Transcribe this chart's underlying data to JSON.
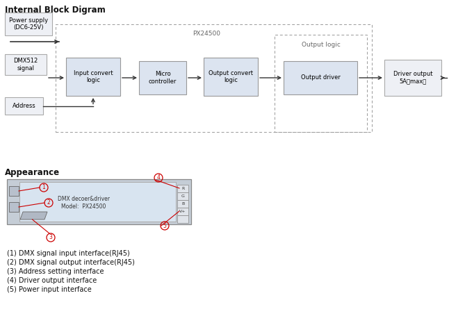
{
  "title_block": "Internal Block Digram",
  "title_appearance": "Appearance",
  "bg_color": "#ffffff",
  "labels": {
    "power_supply": "Power supply\n(DC6-25V)",
    "dmx512": "DMX512\nsignal",
    "address": "Address",
    "input_convert": "Input convert\nlogic",
    "micro": "Micro\ncontroller",
    "output_convert": "Output convert\nlogic",
    "output_driver": "Output driver",
    "driver_output": "Driver output\n5A（max）",
    "px24500": "PX24500",
    "output_logic": "Output logic"
  },
  "legend_lines": [
    "(1) DMX signal input interface(RJ45)",
    "(2) DMX signal output interface(RJ45)",
    "(3) Address setting interface",
    "(4) Driver output interface",
    "(5) Power input interface"
  ],
  "appearance_line1": "DMX decoer&driver",
  "appearance_line2": "Model:  PX24500",
  "rgb_labels": [
    "R",
    "G",
    "B",
    "V+",
    ""
  ],
  "circle_color": "#cc0000",
  "line_color": "#cc0000"
}
